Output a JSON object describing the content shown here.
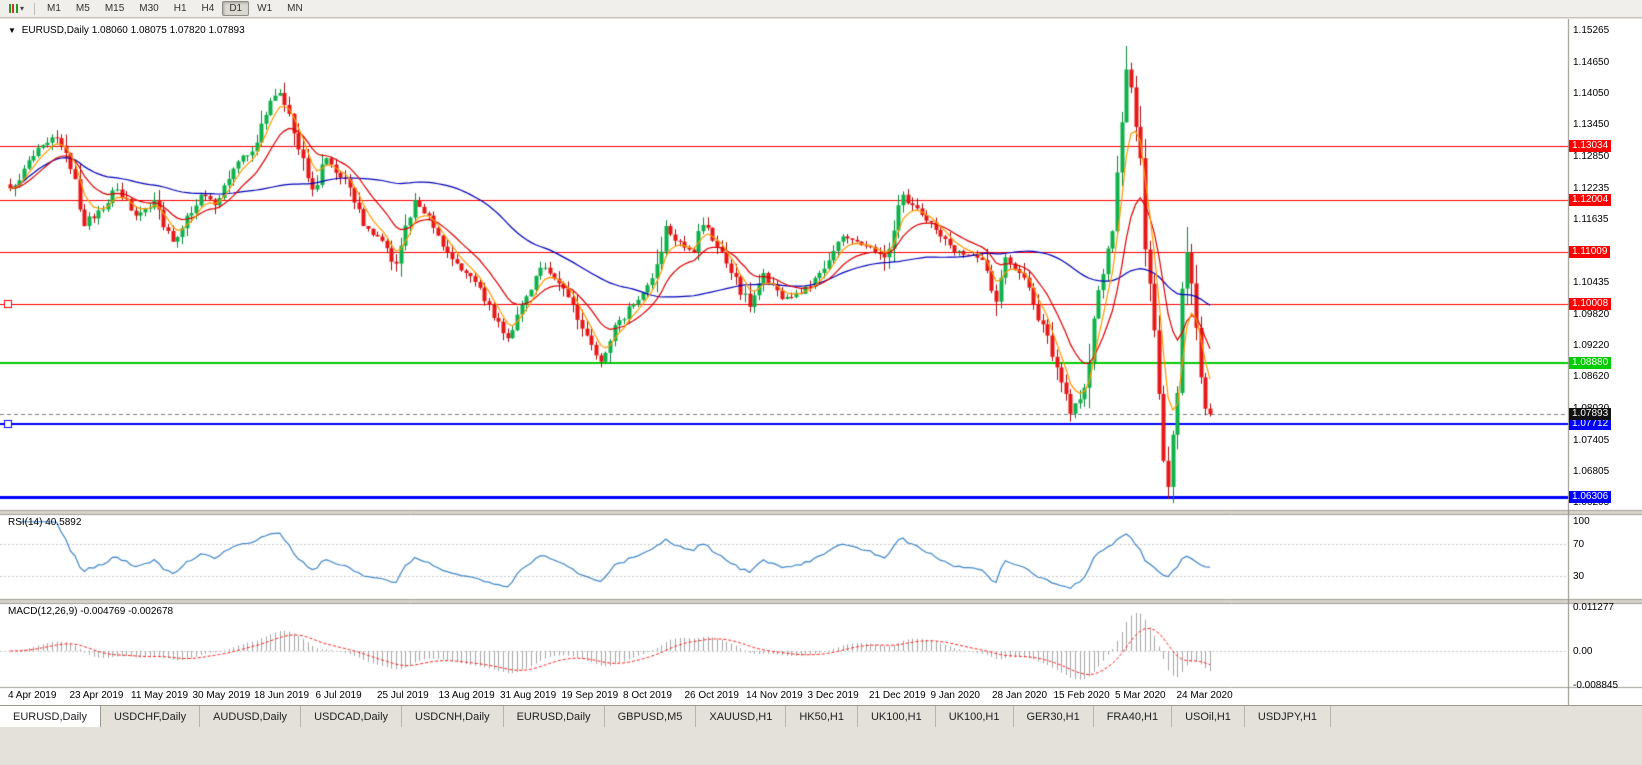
{
  "toolbar": {
    "timeframes": [
      {
        "label": "M1",
        "active": false
      },
      {
        "label": "M5",
        "active": false
      },
      {
        "label": "M15",
        "active": false
      },
      {
        "label": "M30",
        "active": false
      },
      {
        "label": "H1",
        "active": false
      },
      {
        "label": "H4",
        "active": false
      },
      {
        "label": "D1",
        "active": true
      },
      {
        "label": "W1",
        "active": false
      },
      {
        "label": "MN",
        "active": false
      }
    ]
  },
  "icons": {
    "title_marker": "▼",
    "dropdown": "▾"
  },
  "chart": {
    "symbol": "EURUSD,Daily",
    "ohlc": "1.08060 1.08075 1.07820 1.07893"
  },
  "chart_data": {
    "type": "candlestick",
    "symbol": "EURUSD",
    "period": "Daily",
    "bars_total": 259,
    "price_axis": {
      "view_max": 1.15334,
      "view_min": 1.06057,
      "ticks": [
        "1.15265",
        "1.14650",
        "1.14050",
        "1.13450",
        "1.12850",
        "1.12235",
        "1.11635",
        "1.11035",
        "1.10435",
        "1.09820",
        "1.09220",
        "1.08620",
        "1.08020",
        "1.07405",
        "1.06805",
        "1.06205"
      ]
    },
    "x_axis": {
      "labels": [
        "4 Apr 2019",
        "23 Apr 2019",
        "11 May 2019",
        "30 May 2019",
        "18 Jun 2019",
        "6 Jul 2019",
        "25 Jul 2019",
        "13 Aug 2019",
        "31 Aug 2019",
        "19 Sep 2019",
        "8 Oct 2019",
        "26 Oct 2019",
        "14 Nov 2019",
        "3 Dec 2019",
        "21 Dec 2019",
        "9 Jan 2020",
        "28 Jan 2020",
        "15 Feb 2020",
        "5 Mar 2020",
        "24 Mar 2020"
      ]
    },
    "close_anchors": [
      [
        0,
        1.1222
      ],
      [
        3,
        1.126
      ],
      [
        6,
        1.13
      ],
      [
        9,
        1.132
      ],
      [
        12,
        1.129
      ],
      [
        14,
        1.124
      ],
      [
        16,
        1.115
      ],
      [
        19,
        1.118
      ],
      [
        23,
        1.122
      ],
      [
        27,
        1.117
      ],
      [
        31,
        1.12
      ],
      [
        35,
        1.112
      ],
      [
        38,
        1.117
      ],
      [
        41,
        1.121
      ],
      [
        44,
        1.119
      ],
      [
        48,
        1.126
      ],
      [
        53,
        1.131
      ],
      [
        56,
        1.139
      ],
      [
        58,
        1.1405
      ],
      [
        60,
        1.1365
      ],
      [
        63,
        1.128
      ],
      [
        65,
        1.122
      ],
      [
        68,
        1.128
      ],
      [
        72,
        1.124
      ],
      [
        76,
        1.115
      ],
      [
        79,
        1.113
      ],
      [
        83,
        1.1078
      ],
      [
        87,
        1.12
      ],
      [
        90,
        1.117
      ],
      [
        94,
        1.11
      ],
      [
        98,
        1.106
      ],
      [
        103,
        1.1
      ],
      [
        107,
        1.0935
      ],
      [
        110,
        1.1
      ],
      [
        114,
        1.107
      ],
      [
        118,
        1.104
      ],
      [
        121,
        1.1
      ],
      [
        124,
        1.094
      ],
      [
        127,
        1.089
      ],
      [
        130,
        1.096
      ],
      [
        134,
        1.1
      ],
      [
        138,
        1.105
      ],
      [
        141,
        1.115
      ],
      [
        144,
        1.112
      ],
      [
        147,
        1.11
      ],
      [
        149,
        1.1152
      ],
      [
        152,
        1.111
      ],
      [
        155,
        1.106
      ],
      [
        159,
        1.0995
      ],
      [
        162,
        1.106
      ],
      [
        166,
        1.101
      ],
      [
        170,
        1.102
      ],
      [
        174,
        1.106
      ],
      [
        179,
        1.113
      ],
      [
        182,
        1.112
      ],
      [
        185,
        1.111
      ],
      [
        188,
        1.109
      ],
      [
        192,
        1.121
      ],
      [
        194,
        1.119
      ],
      [
        197,
        1.116
      ],
      [
        200,
        1.113
      ],
      [
        203,
        1.11
      ],
      [
        206,
        1.1095
      ],
      [
        209,
        1.1085
      ],
      [
        212,
        1.1005
      ],
      [
        214,
        1.109
      ],
      [
        217,
        1.106
      ],
      [
        220,
        1.1
      ],
      [
        223,
        1.094
      ],
      [
        226,
        1.085
      ],
      [
        228,
        1.079
      ],
      [
        231,
        1.084
      ],
      [
        234,
        1.1027
      ],
      [
        237,
        1.114
      ],
      [
        240,
        1.145
      ],
      [
        242,
        1.134
      ],
      [
        243,
        1.128
      ],
      [
        244,
        1.1105
      ],
      [
        246,
        1.095
      ],
      [
        248,
        1.07
      ],
      [
        249,
        1.065
      ],
      [
        250,
        1.075
      ],
      [
        251,
        1.083
      ],
      [
        252,
        1.103
      ],
      [
        253,
        1.11
      ],
      [
        254,
        1.104
      ],
      [
        255,
        1.0955
      ],
      [
        256,
        1.086
      ],
      [
        257,
        1.08
      ],
      [
        258,
        1.07893
      ]
    ],
    "wick_overrides": [
      [
        58,
        "high",
        1.1412
      ],
      [
        127,
        "low",
        1.0879
      ],
      [
        228,
        "low",
        1.0775
      ],
      [
        240,
        "high",
        1.1495
      ],
      [
        249,
        "low",
        1.0637
      ],
      [
        253,
        "high",
        1.1148
      ]
    ],
    "hlines": [
      {
        "price": 1.13034,
        "label": "1.13034",
        "color": "#ff0000",
        "width": 1,
        "handle": false
      },
      {
        "price": 1.12004,
        "label": "1.12004",
        "color": "#ff0000",
        "width": 1,
        "handle": false
      },
      {
        "price": 1.11009,
        "label": "1.11009",
        "color": "#ff0000",
        "width": 1,
        "handle": false
      },
      {
        "price": 1.10008,
        "label": "1.10008",
        "color": "#ff0000",
        "width": 1,
        "handle": true
      },
      {
        "price": 1.0888,
        "label": "1.08880",
        "color": "#00cc00",
        "width": 2,
        "handle": false
      },
      {
        "price": 1.07712,
        "label": "1.07712",
        "color": "#0000ff",
        "width": 2,
        "handle": true
      },
      {
        "price": 1.06306,
        "label": "1.06306",
        "color": "#0000ff",
        "width": 3,
        "handle": false
      }
    ],
    "current_price": {
      "value": 1.07893,
      "label": "1.07893"
    },
    "moving_averages": [
      {
        "type": "sma",
        "period": 50,
        "color": "#0000bb"
      },
      {
        "type": "ema",
        "period": 13,
        "color": "#dd0000"
      },
      {
        "type": "ema",
        "period": 5,
        "color": "#ff9900"
      }
    ],
    "rsi": {
      "name": "RSI(14)",
      "value_label": "40.5892",
      "period": 14,
      "levels": [
        "100",
        "70",
        "30"
      ],
      "color": "#3f86c7"
    },
    "macd": {
      "name": "MACD(12,26,9)",
      "values_label": "-0.004769 -0.002678",
      "fast": 12,
      "slow": 26,
      "signal": 9,
      "axis_labels": [
        "0.011277",
        "0.00",
        "-0.008845"
      ],
      "hist_color": "#a6a6a6",
      "signal_color": "#ff2222"
    },
    "colors": {
      "background": "#ffffff",
      "up": "#0db24a",
      "up_wick": "#078a37",
      "down": "#e81717",
      "down_wick": "#a81010"
    }
  },
  "tabs": [
    {
      "label": "EURUSD,Daily",
      "active": true
    },
    {
      "label": "USDCHF,Daily",
      "active": false
    },
    {
      "label": "AUDUSD,Daily",
      "active": false
    },
    {
      "label": "USDCAD,Daily",
      "active": false
    },
    {
      "label": "USDCNH,Daily",
      "active": false
    },
    {
      "label": "EURUSD,Daily",
      "active": false
    },
    {
      "label": "GBPUSD,M5",
      "active": false
    },
    {
      "label": "XAUUSD,H1",
      "active": false
    },
    {
      "label": "HK50,H1",
      "active": false
    },
    {
      "label": "UK100,H1",
      "active": false
    },
    {
      "label": "UK100,H1",
      "active": false
    },
    {
      "label": "GER30,H1",
      "active": false
    },
    {
      "label": "FRA40,H1",
      "active": false
    },
    {
      "label": "USOil,H1",
      "active": false
    },
    {
      "label": "USDJPY,H1",
      "active": false
    }
  ]
}
